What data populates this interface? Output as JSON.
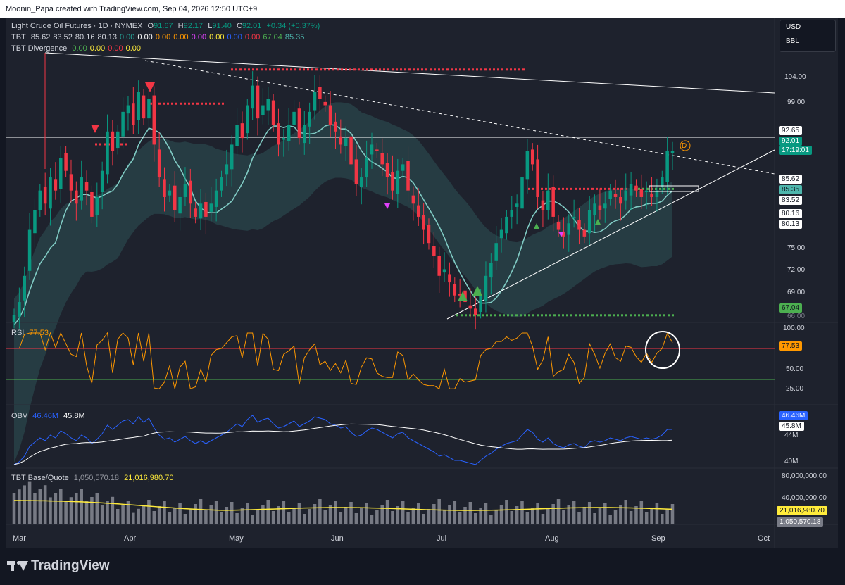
{
  "header": {
    "attribution": "Moonin_Papa created with TradingView.com, Sep 04, 2026 12:50 UTC+9"
  },
  "symbol": {
    "name": "Light Crude Oil Futures · 1D · NYMEX",
    "o_label": "O",
    "o": "91.67",
    "h_label": "H",
    "h": "92.17",
    "l_label": "L",
    "l": "91.40",
    "c_label": "C",
    "c": "92.01",
    "change": "+0.34 (+0.37%)"
  },
  "tbt": {
    "name": "TBT",
    "values": [
      {
        "v": "85.62",
        "color": "#d1d4dc"
      },
      {
        "v": "83.52",
        "color": "#d1d4dc"
      },
      {
        "v": "80.16",
        "color": "#d1d4dc"
      },
      {
        "v": "80.13",
        "color": "#d1d4dc"
      },
      {
        "v": "0.00",
        "color": "#26a69a"
      },
      {
        "v": "0.00",
        "color": "#ffffff"
      },
      {
        "v": "0.00",
        "color": "#ff9800"
      },
      {
        "v": "0.00",
        "color": "#ff9800"
      },
      {
        "v": "0.00",
        "color": "#e040fb"
      },
      {
        "v": "0.00",
        "color": "#ffeb3b"
      },
      {
        "v": "0.00",
        "color": "#2962ff"
      },
      {
        "v": "0.00",
        "color": "#f23645"
      },
      {
        "v": "67.04",
        "color": "#4caf50"
      },
      {
        "v": "85.35",
        "color": "#4db6ac"
      }
    ]
  },
  "divergence": {
    "name": "TBT Divergence",
    "values": [
      {
        "v": "0.00",
        "color": "#4caf50"
      },
      {
        "v": "0.00",
        "color": "#ffeb3b"
      },
      {
        "v": "0.00",
        "color": "#f23645"
      },
      {
        "v": "0.00",
        "color": "#ffeb3b"
      }
    ]
  },
  "units": {
    "currency": "USD",
    "unit": "BBL"
  },
  "price_scale": {
    "ticks": [
      "104.00",
      "99.00",
      "75.00",
      "72.00",
      "69.00"
    ],
    "badges": [
      {
        "text": "92.65",
        "bg": "#ffffff",
        "fg": "#131722"
      },
      {
        "text": "92.01",
        "bg": "#089981",
        "fg": "#ffffff"
      },
      {
        "text": "17:19:01",
        "bg": "#089981",
        "fg": "#ffffff"
      },
      {
        "text": "85.62",
        "bg": "#ffffff",
        "fg": "#131722"
      },
      {
        "text": "85.35",
        "bg": "#4db6ac",
        "fg": "#131722"
      },
      {
        "text": "83.52",
        "bg": "#ffffff",
        "fg": "#131722"
      },
      {
        "text": "80.16",
        "bg": "#ffffff",
        "fg": "#131722"
      },
      {
        "text": "80.13",
        "bg": "#ffffff",
        "fg": "#131722"
      },
      {
        "text": "67.04",
        "bg": "#4caf50",
        "fg": "#131722"
      }
    ],
    "partial_tick": "66.00"
  },
  "rsi": {
    "name": "RSI",
    "value": "77.53",
    "ticks": [
      "100.00",
      "50.00",
      "25.00"
    ],
    "badge": "77.53"
  },
  "obv": {
    "name": "OBV",
    "v1": "46.46M",
    "v2": "45.8M",
    "ticks": [
      "44M",
      "40M"
    ],
    "badge1": "46.46M",
    "badge2": "45.8M"
  },
  "bq": {
    "name": "TBT Base/Quote",
    "v1": "1,050,570.18",
    "v2": "21,016,980.70",
    "ticks": [
      "80,000,000.00",
      "40,000,000.00"
    ],
    "badge1": "21,016,980.70",
    "badge2": "1,050,570.18"
  },
  "time_axis": [
    "Mar",
    "Apr",
    "May",
    "Jun",
    "Jul",
    "Aug",
    "Sep",
    "Oct"
  ],
  "marker_letter": "D",
  "branding": "TradingView",
  "chart_data": {
    "type": "candlestick",
    "symbol": "Light Crude Oil Futures",
    "interval": "1D",
    "ylim": [
      66,
      107
    ],
    "x_labels": [
      "Mar",
      "Apr",
      "May",
      "Jun",
      "Jul",
      "Aug",
      "Sep",
      "Oct"
    ],
    "ohlc_last": {
      "open": 91.67,
      "high": 92.17,
      "low": 91.4,
      "close": 92.01
    },
    "closes_approx": [
      67,
      69,
      73,
      80,
      83,
      86,
      84,
      88,
      86,
      91,
      89,
      86,
      84,
      88,
      86,
      82,
      85,
      89,
      95,
      92,
      95,
      98,
      99,
      96,
      101,
      97,
      100,
      93,
      88,
      85,
      86,
      83,
      85,
      87,
      84,
      82,
      84,
      82,
      84,
      86,
      88,
      90,
      93,
      96,
      94,
      99,
      102,
      97,
      99,
      100,
      96,
      93,
      94,
      96,
      98,
      94,
      96,
      98,
      101,
      100,
      99,
      96,
      95,
      93,
      94,
      90,
      87,
      88,
      91,
      93,
      92,
      90,
      88,
      86,
      89,
      90,
      86,
      84,
      82,
      80,
      78,
      76,
      73,
      74,
      72,
      70,
      70,
      69,
      68,
      67,
      70,
      73,
      75,
      78,
      80,
      82,
      83,
      84,
      88,
      92,
      90,
      85,
      83,
      86,
      82,
      80,
      79,
      81,
      82,
      80,
      79,
      83,
      84,
      83,
      84,
      86,
      85,
      84,
      86,
      87,
      86,
      85,
      86,
      85,
      86,
      88,
      92,
      92
    ],
    "series_lines": [
      {
        "name": "TBT",
        "color": "#80cbc4"
      }
    ],
    "horizontal_levels": [
      92.65,
      85.62,
      104.5,
      99.3,
      67.04
    ],
    "rsi": {
      "last": 77.53,
      "levels": [
        70,
        30
      ]
    },
    "obv": {
      "last": 46.46,
      "signal": 45.8,
      "unit": "M"
    },
    "volume": {
      "last": 1050570.18,
      "ma": 21016980.7
    }
  }
}
